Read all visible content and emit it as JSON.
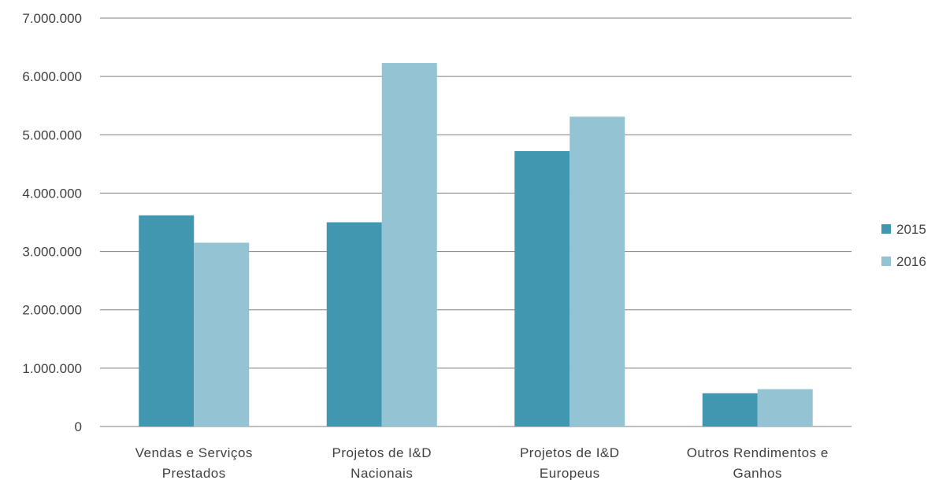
{
  "chart_data": {
    "type": "bar",
    "categories": [
      [
        "Vendas e Serviços",
        "Prestados"
      ],
      [
        "Projetos de I&D",
        "Nacionais"
      ],
      [
        "Projetos de I&D",
        "Europeus"
      ],
      [
        "Outros Rendimentos e",
        "Ganhos"
      ]
    ],
    "series": [
      {
        "name": "2015",
        "color": "#4197b0",
        "values": [
          3620000,
          3500000,
          4720000,
          570000
        ]
      },
      {
        "name": "2016",
        "color": "#94c3d4",
        "values": [
          3150000,
          6230000,
          5310000,
          640000
        ]
      }
    ],
    "ylim": [
      0,
      7000000
    ],
    "yticks": [
      0,
      1000000,
      2000000,
      3000000,
      4000000,
      5000000,
      6000000,
      7000000
    ],
    "ytick_labels": [
      "0",
      "1.000.000",
      "2.000.000",
      "3.000.000",
      "4.000.000",
      "5.000.000",
      "6.000.000",
      "7.000.000"
    ],
    "grid": true,
    "legend_position": "right",
    "title": "",
    "xlabel": "",
    "ylabel": ""
  }
}
